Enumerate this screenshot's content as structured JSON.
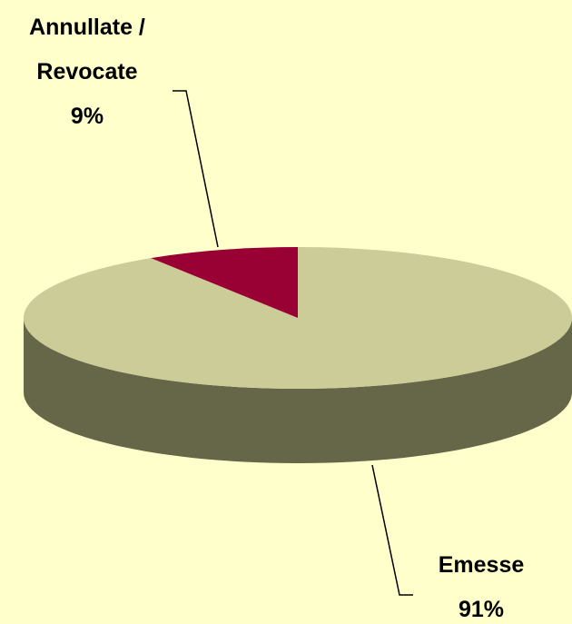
{
  "chart_data": {
    "type": "pie",
    "categories": [
      "Emesse",
      "Annullate / Revocate"
    ],
    "values": [
      91,
      9
    ],
    "value_labels": [
      "91%",
      "9%"
    ],
    "colors": [
      "#cccc99",
      "#990033"
    ],
    "side_colors": [
      "#666648",
      "#5a0020"
    ]
  }
}
